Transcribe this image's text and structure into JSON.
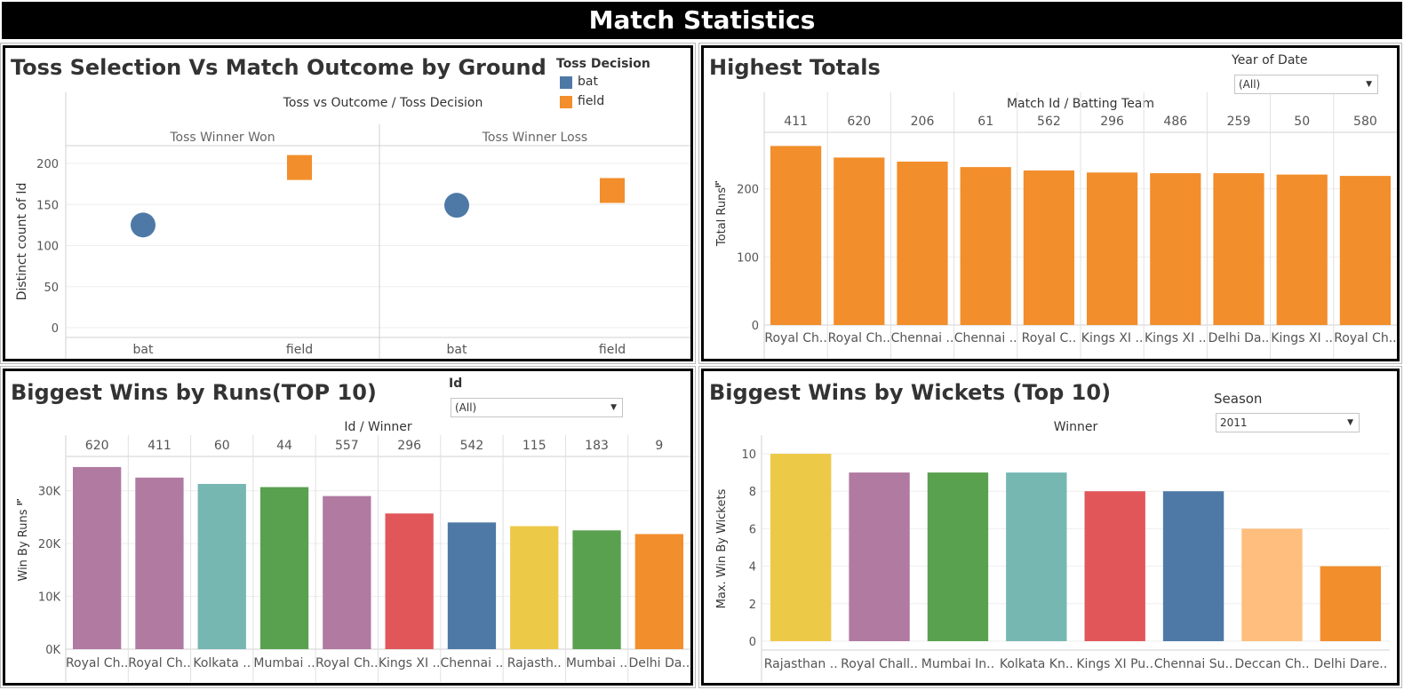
{
  "dashboard_title": "Match Statistics",
  "panels": {
    "toss": {
      "title": "Toss Selection Vs Match Outcome by Ground",
      "legend_title": "Toss Decision",
      "legend": [
        {
          "label": "bat",
          "color": "#4e79a7"
        },
        {
          "label": "field",
          "color": "#f28e2b"
        }
      ],
      "header": "Toss vs Outcome  /  Toss Decision"
    },
    "highest_totals": {
      "title": "Highest Totals",
      "filter_label": "Year of Date",
      "filter_value": "(All)",
      "header": "Match Id  /  Batting Team"
    },
    "wins_runs": {
      "title": "Biggest Wins by Runs(TOP 10)",
      "filter_label": "Id",
      "filter_value": "(All)",
      "header": "Id  /  Winner"
    },
    "wins_wickets": {
      "title": "Biggest Wins by Wickets (Top 10)",
      "filter_label": "Season",
      "filter_value": "2011",
      "header": "Winner"
    }
  },
  "chart_data": [
    {
      "type": "scatter",
      "title": "Toss Selection Vs Match Outcome by Ground",
      "ylabel": "Distinct count of Id",
      "ylim": [
        0,
        220
      ],
      "yticks": [
        0,
        50,
        100,
        150,
        200
      ],
      "groups": [
        "Toss Winner Won",
        "Toss Winner Loss"
      ],
      "categories": [
        "bat",
        "field"
      ],
      "points": [
        {
          "group": "Toss Winner Won",
          "x": "bat",
          "y": 125,
          "series": "bat",
          "color": "#4e79a7",
          "shape": "circle"
        },
        {
          "group": "Toss Winner Won",
          "x": "field",
          "y": 195,
          "series": "field",
          "color": "#f28e2b",
          "shape": "square"
        },
        {
          "group": "Toss Winner Loss",
          "x": "bat",
          "y": 149,
          "series": "bat",
          "color": "#4e79a7",
          "shape": "circle"
        },
        {
          "group": "Toss Winner Loss",
          "x": "field",
          "y": 167,
          "series": "field",
          "color": "#f28e2b",
          "shape": "square"
        }
      ]
    },
    {
      "type": "bar",
      "title": "Highest Totals",
      "ylabel": "Total Runs",
      "ylim": [
        0,
        300
      ],
      "yticks": [
        0,
        100,
        200
      ],
      "ytick_labels": [
        "0",
        "100",
        "200"
      ],
      "match_ids": [
        "411",
        "620",
        "206",
        "61",
        "562",
        "296",
        "486",
        "259",
        "50",
        "580"
      ],
      "categories": [
        "Royal Ch..",
        "Royal Ch..",
        "Chennai ..",
        "Chennai ..",
        "Royal C..",
        "Kings XI ..",
        "Kings XI ..",
        "Delhi Da..",
        "Kings XI ..",
        "Royal Ch.."
      ],
      "values": [
        263,
        246,
        240,
        232,
        227,
        224,
        223,
        223,
        221,
        219
      ],
      "colors": [
        "#f28e2b",
        "#f28e2b",
        "#f28e2b",
        "#f28e2b",
        "#f28e2b",
        "#f28e2b",
        "#f28e2b",
        "#f28e2b",
        "#f28e2b",
        "#f28e2b"
      ]
    },
    {
      "type": "bar",
      "title": "Biggest Wins by Runs(TOP 10)",
      "ylabel": "Win By Runs",
      "ylim": [
        0,
        36000
      ],
      "yticks": [
        0,
        10000,
        20000,
        30000
      ],
      "ytick_labels": [
        "0K",
        "10K",
        "20K",
        "30K"
      ],
      "match_ids": [
        "620",
        "411",
        "60",
        "44",
        "557",
        "296",
        "542",
        "115",
        "183",
        "9"
      ],
      "categories": [
        "Royal Ch..",
        "Royal Ch..",
        "Kolkata ..",
        "Mumbai ..",
        "Royal Ch..",
        "Kings XI ..",
        "Chennai ..",
        "Rajasth..",
        "Mumbai ..",
        "Delhi Da.."
      ],
      "values": [
        34500,
        32500,
        31300,
        30700,
        29000,
        25700,
        24000,
        23300,
        22500,
        21800
      ],
      "colors": [
        "#b07aa1",
        "#b07aa1",
        "#76b7b2",
        "#59a14f",
        "#b07aa1",
        "#e15759",
        "#4e79a7",
        "#edc948",
        "#59a14f",
        "#f28e2b"
      ]
    },
    {
      "type": "bar",
      "title": "Biggest Wins by Wickets (Top 10)",
      "ylabel": "Max. Win By Wickets",
      "ylim": [
        0,
        10
      ],
      "yticks": [
        0,
        2,
        4,
        6,
        8,
        10
      ],
      "ytick_labels": [
        "0",
        "2",
        "4",
        "6",
        "8",
        "10"
      ],
      "categories": [
        "Rajasthan ..",
        "Royal Chall..",
        "Mumbai In..",
        "Kolkata Kn..",
        "Kings XI Pu..",
        "Chennai Su..",
        "Deccan Ch..",
        "Delhi Dare.."
      ],
      "values": [
        10,
        9,
        9,
        9,
        8,
        8,
        6,
        4
      ],
      "colors": [
        "#edc948",
        "#b07aa1",
        "#59a14f",
        "#76b7b2",
        "#e15759",
        "#4e79a7",
        "#ffbe7d",
        "#f28e2b"
      ]
    }
  ]
}
